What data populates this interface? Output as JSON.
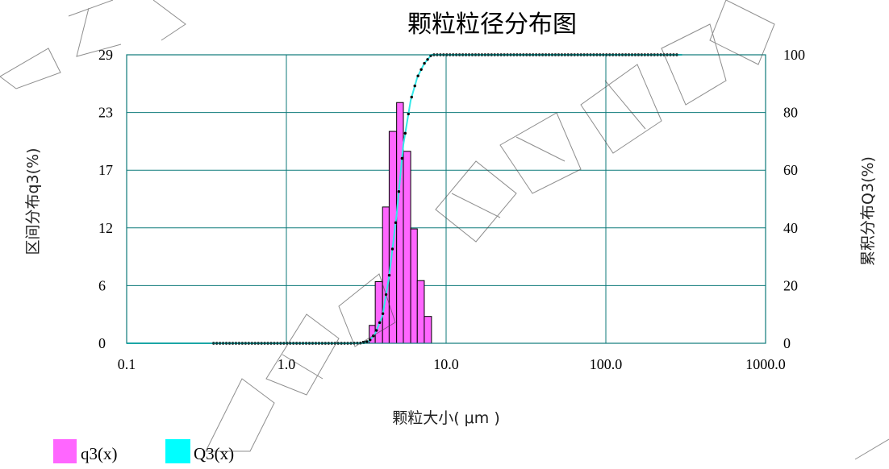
{
  "chart_data": {
    "type": "bar",
    "title": "颗粒粒径分布图",
    "xlabel": "颗粒大小( μm )",
    "ylabel_left": "区间分布q3(%)",
    "ylabel_right": "累积分布Q3(%)",
    "x_scale": "log",
    "xlim": [
      0.1,
      1000
    ],
    "x_ticks": [
      "0.1",
      "1.0",
      "10.0",
      "100.0",
      "1000.0"
    ],
    "y_left_ticks": [
      "0",
      "6",
      "12",
      "17",
      "23",
      "29"
    ],
    "y_left_lim": [
      0,
      29
    ],
    "y_right_ticks": [
      "0",
      "20",
      "40",
      "60",
      "80",
      "100"
    ],
    "y_right_lim": [
      0,
      100
    ],
    "grid": true,
    "legend_position": "bottom-left",
    "series": [
      {
        "name": "q3(x)",
        "kind": "bar",
        "color": "#ff66ff",
        "bins": [
          {
            "x0": 3.0,
            "x1": 3.3,
            "value": 0.2
          },
          {
            "x0": 3.3,
            "x1": 3.6,
            "value": 1.8
          },
          {
            "x0": 3.6,
            "x1": 4.0,
            "value": 6.2
          },
          {
            "x0": 4.0,
            "x1": 4.4,
            "value": 13.7
          },
          {
            "x0": 4.4,
            "x1": 4.9,
            "value": 21.3
          },
          {
            "x0": 4.9,
            "x1": 5.4,
            "value": 24.2
          },
          {
            "x0": 5.4,
            "x1": 6.0,
            "value": 19.3
          },
          {
            "x0": 6.0,
            "x1": 6.6,
            "value": 11.5
          },
          {
            "x0": 6.6,
            "x1": 7.3,
            "value": 6.3
          },
          {
            "x0": 7.3,
            "x1": 8.1,
            "value": 2.7
          }
        ]
      },
      {
        "name": "Q3(x)",
        "kind": "line",
        "color": "#33e8e8",
        "x": [
          0.1,
          2.5,
          3.0,
          3.3,
          3.6,
          4.0,
          4.4,
          4.9,
          5.4,
          6.0,
          6.6,
          7.3,
          8.1,
          300
        ],
        "values": [
          0,
          0,
          0.1,
          0.8,
          3.4,
          9.6,
          23.3,
          44.6,
          68.9,
          84.2,
          92.2,
          97.0,
          100,
          100
        ]
      }
    ]
  },
  "watermark": "珠海欧美克仪器有限公司"
}
